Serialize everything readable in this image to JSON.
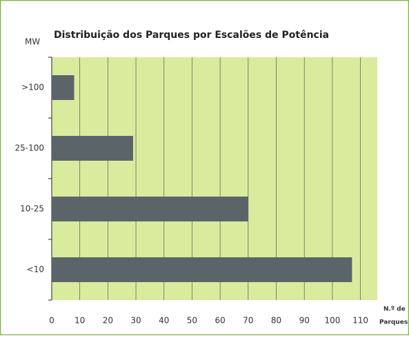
{
  "chart_data": {
    "type": "bar",
    "orientation": "horizontal",
    "title": "Distribuição dos Parques por Escalões de Potência",
    "ylabel": "MW",
    "xlabel": [
      "N.º de",
      "Parques"
    ],
    "categories": [
      ">100",
      "25-100",
      "10-25",
      "<10"
    ],
    "values": [
      8,
      29,
      70,
      107
    ],
    "color": "#5b6569",
    "background": "#d9ec9d",
    "xlim": [
      0,
      116
    ],
    "xticks": [
      0,
      10,
      20,
      30,
      40,
      50,
      60,
      70,
      80,
      90,
      100,
      110
    ],
    "grid": true
  }
}
